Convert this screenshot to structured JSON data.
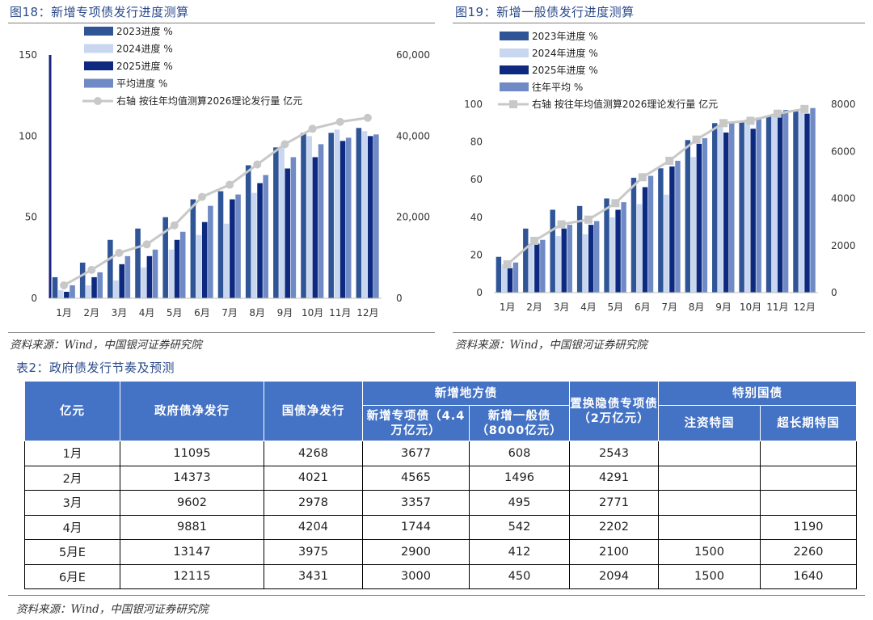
{
  "figures": {
    "fig18_title": "图18：新增专项债发行进度测算",
    "fig19_title": "图19：新增一般债发行进度测算",
    "source_left": "资料来源：Wind，中国银河证券研究院",
    "source_right": "资料来源：Wind，中国银河证券研究院"
  },
  "colors": {
    "series_2023": "#2f5597",
    "series_2024": "#c8d7ef",
    "series_2025": "#0d2a80",
    "series_avg": "#6f8ac4",
    "line": "#c8c8c8",
    "axis": "#1a237e",
    "table_header_bg": "#4472c4",
    "title": "#2a4a8c"
  },
  "chart_data": [
    {
      "type": "bar",
      "title": "图18：新增专项债发行进度测算",
      "categories": [
        "1月",
        "2月",
        "3月",
        "4月",
        "5月",
        "6月",
        "7月",
        "8月",
        "9月",
        "10月",
        "11月",
        "12月"
      ],
      "series": [
        {
          "name": "2023进度 %",
          "values": [
            13,
            22,
            36,
            43,
            50,
            61,
            66,
            82,
            93,
            102,
            102,
            105
          ]
        },
        {
          "name": "2024进度 %",
          "values": [
            5,
            8,
            11,
            19,
            30,
            39,
            46,
            65,
            93,
            100,
            104,
            103
          ]
        },
        {
          "name": "2025进度 %",
          "values": [
            4,
            13,
            21,
            26,
            36,
            47,
            61,
            71,
            80,
            87,
            97,
            100
          ]
        },
        {
          "name": "平均进度 %",
          "values": [
            8,
            16,
            26,
            30,
            41,
            57,
            64,
            76,
            87,
            95,
            99,
            101
          ]
        }
      ],
      "line_series": {
        "name": "右轴 按往年均值测算2026理论发行量 亿元",
        "axis": "right",
        "marker": "circle",
        "values": [
          3200,
          7000,
          11200,
          13300,
          18000,
          25000,
          28000,
          33000,
          38000,
          41800,
          43500,
          44500
        ]
      },
      "ylim": [
        0,
        150
      ],
      "yticks": [
        0,
        50,
        100,
        150
      ],
      "y2lim": [
        0,
        60000
      ],
      "y2ticks": [
        "0",
        "20,000",
        "40,000",
        "60,000"
      ],
      "legend_position": "top"
    },
    {
      "type": "bar",
      "title": "图19：新增一般债发行进度测算",
      "categories": [
        "1月",
        "2月",
        "3月",
        "4月",
        "5月",
        "6月",
        "7月",
        "8月",
        "9月",
        "10月",
        "11月",
        "12月"
      ],
      "series": [
        {
          "name": "2023年进度 %",
          "values": [
            19,
            34,
            44,
            46,
            50,
            61,
            66,
            81,
            90,
            91,
            94,
            97
          ]
        },
        {
          "name": "2024年进度 %",
          "values": [
            15,
            26,
            30,
            31,
            40,
            47,
            52,
            72,
            89,
            92,
            95,
            96
          ]
        },
        {
          "name": "2025年进度 %",
          "values": [
            13,
            26,
            34,
            36,
            44,
            56,
            67,
            79,
            85,
            87,
            95,
            95
          ]
        },
        {
          "name": "往年平均 %",
          "values": [
            16,
            28,
            36,
            38,
            48,
            62,
            70,
            82,
            90,
            93,
            97,
            98
          ]
        }
      ],
      "line_series": {
        "name": "右轴 按往年均值测算2026理论发行量 亿元",
        "axis": "right",
        "marker": "square",
        "values": [
          1200,
          2200,
          2900,
          3100,
          3800,
          4900,
          5600,
          6500,
          7200,
          7300,
          7600,
          7800
        ]
      },
      "ylim": [
        0,
        100
      ],
      "yticks": [
        0,
        20,
        40,
        60,
        80,
        100
      ],
      "y2lim": [
        0,
        8000
      ],
      "y2ticks": [
        "0",
        "2000",
        "4000",
        "6000",
        "8000"
      ],
      "legend_position": "top"
    }
  ],
  "table": {
    "title": "表2：政府债发行节奏及预测",
    "header_unit": "亿元",
    "col_net_gov": "政府债净发行",
    "col_net_treasury": "国债净发行",
    "group_local": "新增地方债",
    "col_special": "新增专项债（4.4万亿元）",
    "col_general": "新增一般债（8000亿元）",
    "col_replace": "置换隐债专项债（2万亿元）",
    "group_special_treasury": "特别国债",
    "col_capital": "注资特国",
    "col_ultra": "超长期特国",
    "rows": [
      [
        "1月",
        "11095",
        "4268",
        "3677",
        "608",
        "2543",
        "",
        ""
      ],
      [
        "2月",
        "14373",
        "4021",
        "4565",
        "1496",
        "4291",
        "",
        ""
      ],
      [
        "3月",
        "9602",
        "2978",
        "3357",
        "495",
        "2771",
        "",
        ""
      ],
      [
        "4月",
        "9881",
        "4204",
        "1744",
        "542",
        "2202",
        "",
        "1190"
      ],
      [
        "5月E",
        "13147",
        "3975",
        "2900",
        "412",
        "2100",
        "1500",
        "2260"
      ],
      [
        "6月E",
        "12115",
        "3431",
        "3000",
        "450",
        "2094",
        "1500",
        "1640"
      ]
    ],
    "source": "资料来源：Wind，中国银河证券研究院"
  }
}
